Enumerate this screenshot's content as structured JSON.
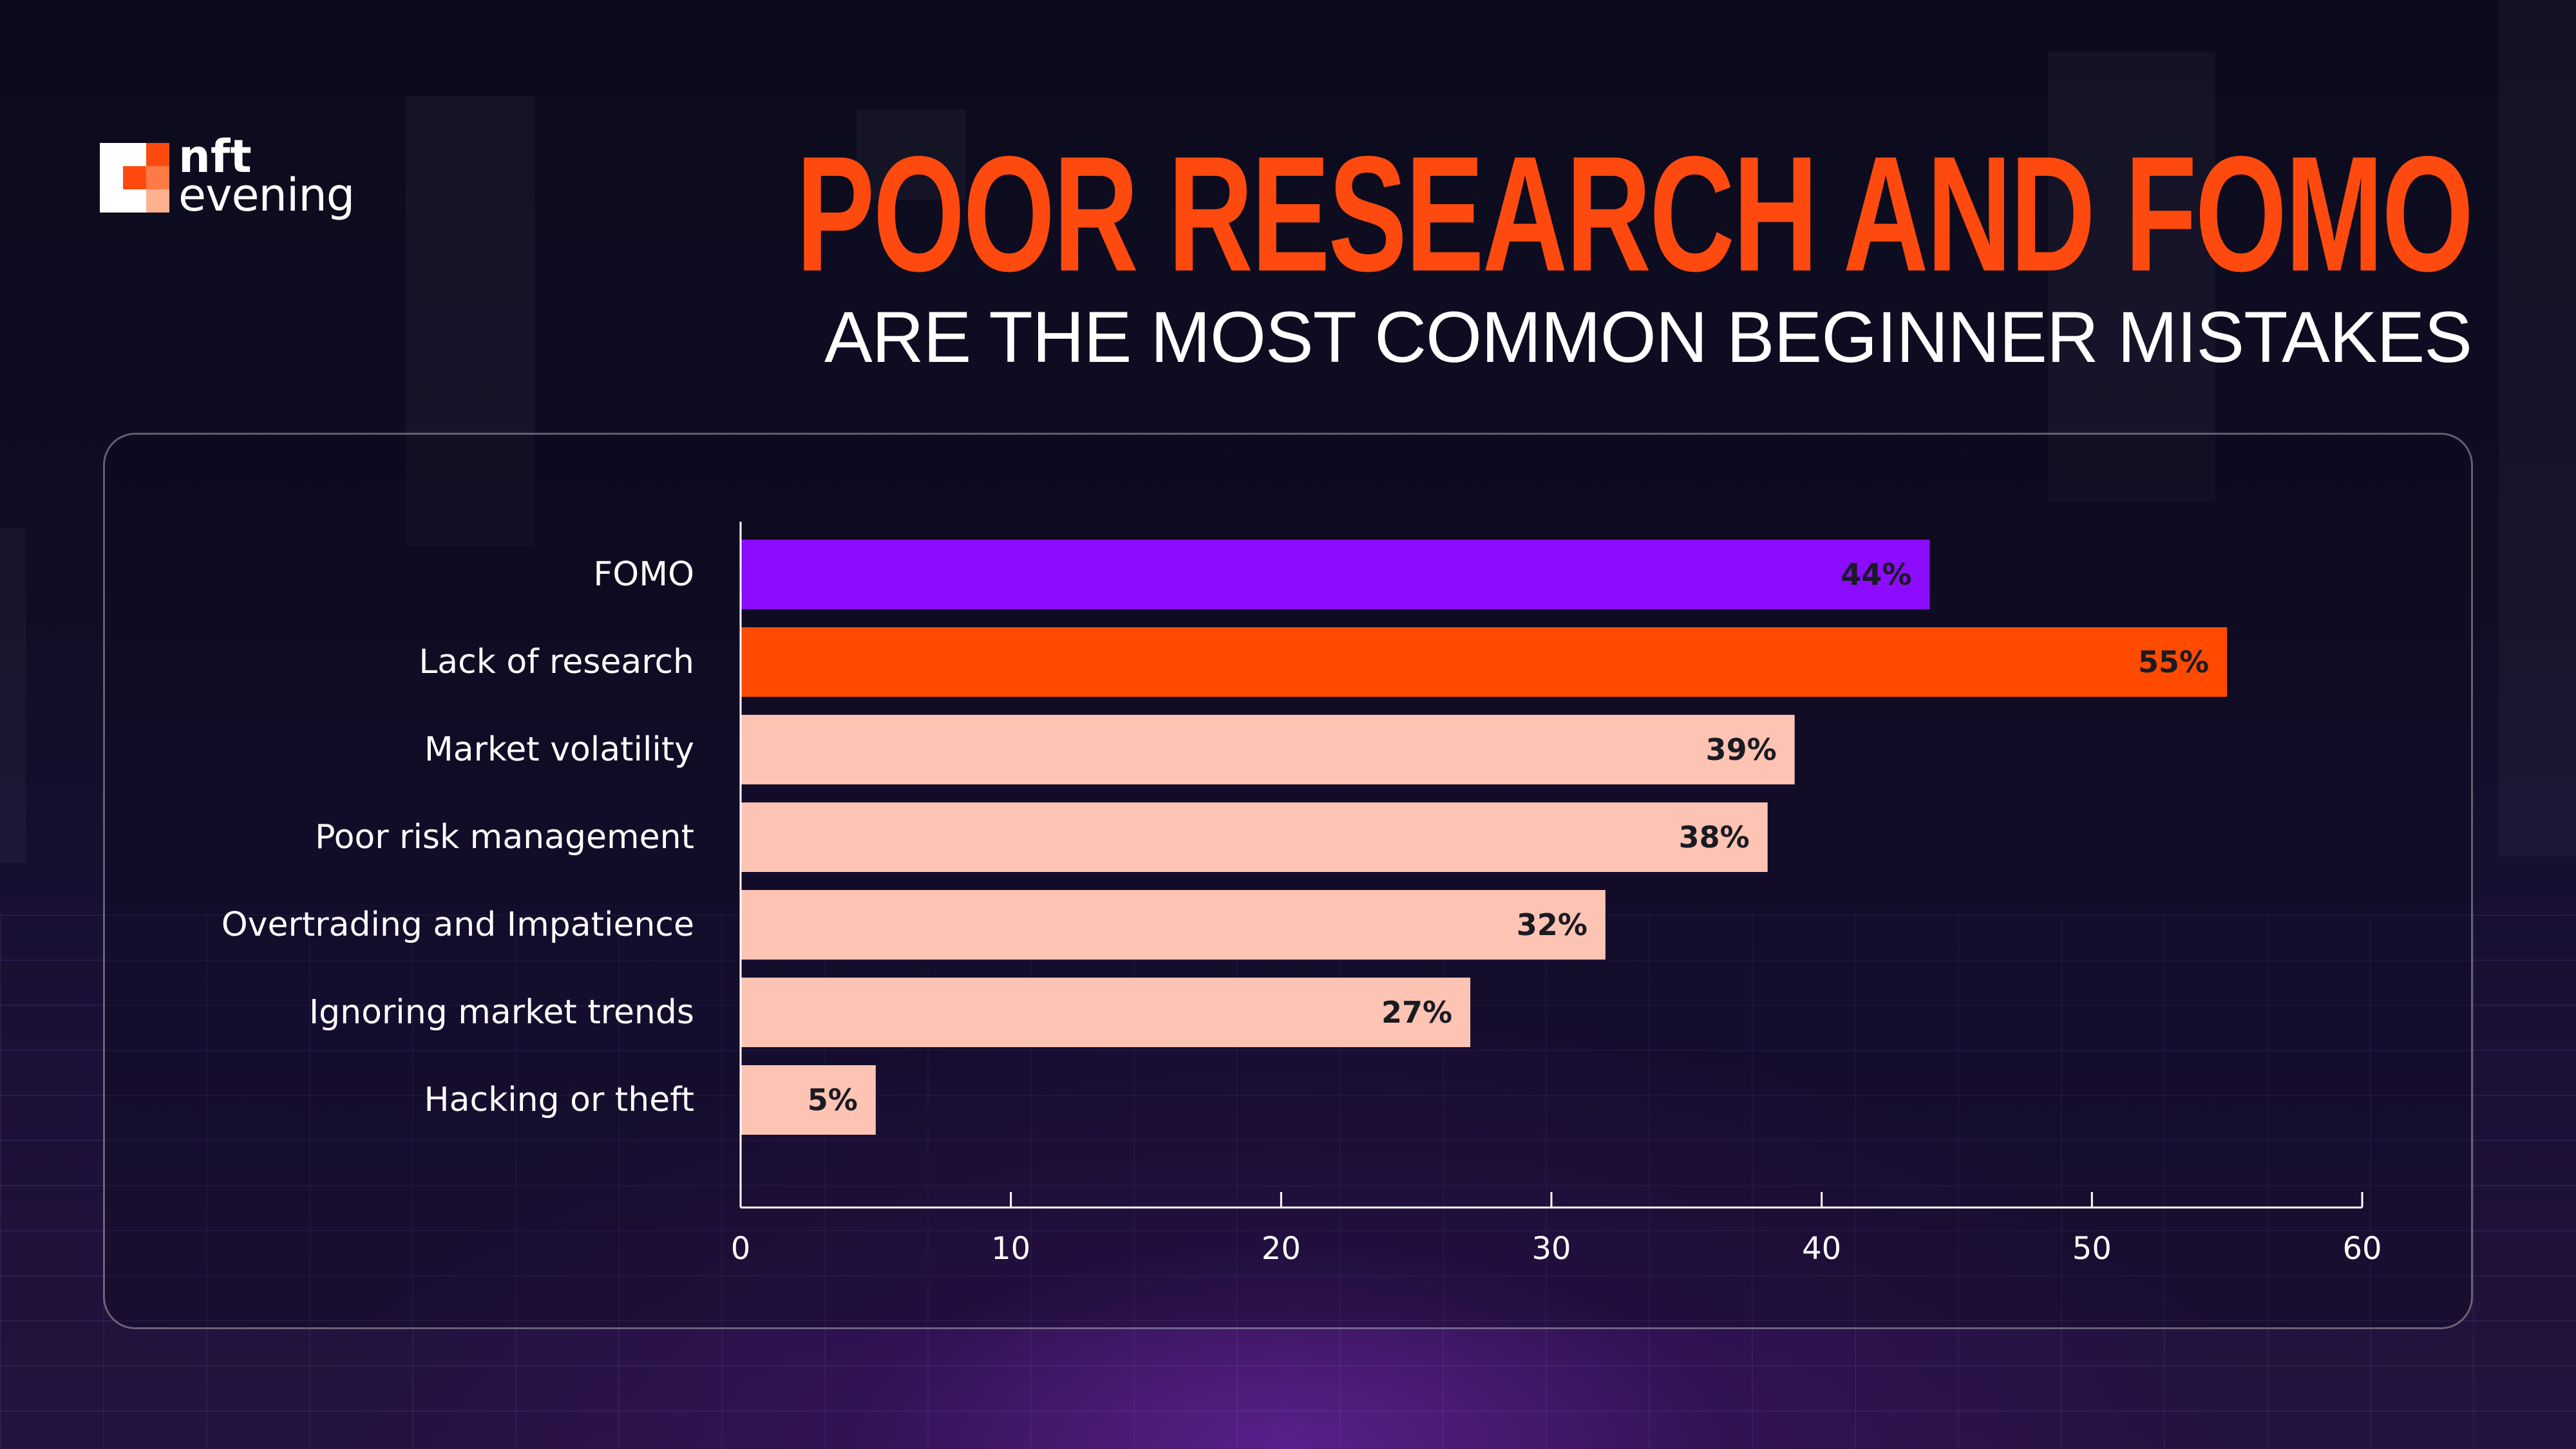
{
  "brand": {
    "logo_line1": "nft",
    "logo_line2": "evening"
  },
  "headline": "POOR RESEARCH AND FOMO",
  "subheadline": "ARE THE MOST COMMON BEGINNER MISTAKES",
  "colors": {
    "accent_purple": "#8c0cff",
    "accent_orange": "#ff4a00",
    "bar_default": "#fdc3b3",
    "title_orange": "#ff4a0f"
  },
  "chart_data": {
    "type": "bar",
    "orientation": "horizontal",
    "categories": [
      "FOMO",
      "Lack of research",
      "Market volatility",
      "Poor risk management",
      "Overtrading and Impatience",
      "Ignoring market trends",
      "Hacking or theft"
    ],
    "values": [
      44,
      55,
      39,
      38,
      32,
      27,
      5
    ],
    "value_labels": [
      "44%",
      "55%",
      "39%",
      "38%",
      "32%",
      "27%",
      "5%"
    ],
    "bar_colors": [
      "#8c0cff",
      "#ff4a00",
      "#fdc3b3",
      "#fdc3b3",
      "#fdc3b3",
      "#fdc3b3",
      "#fdc3b3"
    ],
    "xlim": [
      0,
      60
    ],
    "xticks": [
      0,
      10,
      20,
      30,
      40,
      50,
      60
    ],
    "grid": false,
    "legend": "none"
  }
}
